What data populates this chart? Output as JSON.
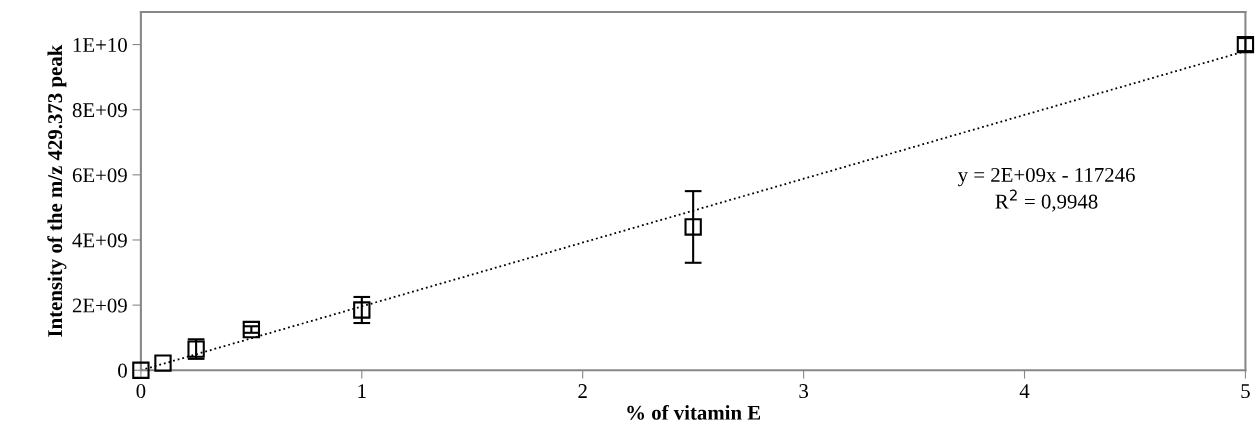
{
  "chart_data": {
    "type": "scatter",
    "xlabel": "% of vitamin E",
    "ylabel": "Intensity of the m/z 429.373 peak",
    "x": [
      0,
      0.1,
      0.25,
      0.5,
      1,
      2.5,
      5
    ],
    "series": [
      {
        "color": "#000000",
        "marker": "square",
        "values": [
          0,
          220000000.0,
          650000000.0,
          1250000000.0,
          1850000000.0,
          4400000000.0,
          10000000000.0
        ],
        "errors": [
          null,
          null,
          300000000.0,
          100000000.0,
          400000000.0,
          1100000000.0,
          200000000.0
        ]
      },
      {
        "type": "line",
        "color": "#000000",
        "line_style": "dotted",
        "marker": "none",
        "x": [
          0,
          5
        ],
        "values": [
          0,
          9800000000.0
        ]
      }
    ],
    "annotations": [
      "y = 2E+09x - 117246",
      "R$^{2}$ = 0,9948"
    ],
    "xlim": [
      0,
      5
    ],
    "xticks": [
      0,
      1,
      2,
      3,
      4,
      5
    ],
    "ylim": [
      0,
      11000000000.0
    ],
    "yticks": [
      0,
      {
        "value": 2000000000.0,
        "label": "2E+09"
      },
      {
        "value": 4000000000.0,
        "label": "4E+09"
      },
      {
        "value": 6000000000.0,
        "label": "6E+09"
      },
      {
        "value": 8000000000.0,
        "label": "8E+09"
      },
      {
        "value": 10000000000.0,
        "label": "1E+10"
      }
    ],
    "grid": false,
    "legend": false
  }
}
